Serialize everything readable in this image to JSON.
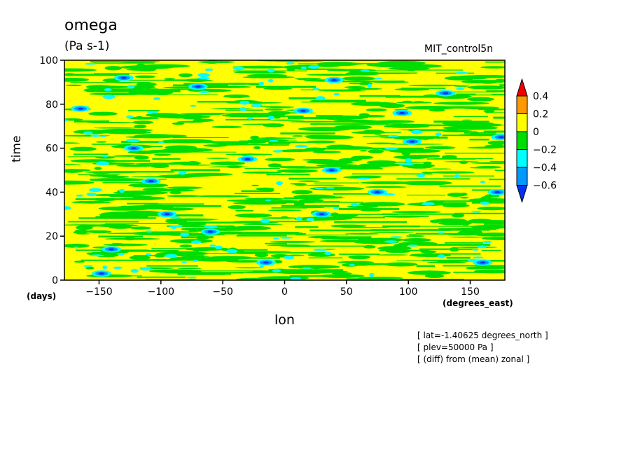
{
  "figure": {
    "title": "omega",
    "units": "(Pa s-1)",
    "run_label": "MIT_control5n",
    "x_label": "lon",
    "x_units": "(degrees_east)",
    "y_label": "time",
    "y_units": "(days)",
    "notes": [
      "[ lat=-1.40625 degrees_north ]",
      "[ plev=50000 Pa ]",
      "[ (diff) from (mean) zonal ]"
    ]
  },
  "chart_data": {
    "type": "heatmap",
    "title": "omega",
    "subtitle": "(Pa s-1)",
    "xlabel": "lon",
    "ylabel": "time",
    "xlim": [
      -178,
      178
    ],
    "ylim": [
      0,
      100
    ],
    "x_ticks": [
      -150,
      -100,
      -50,
      0,
      50,
      100,
      150
    ],
    "y_ticks": [
      0,
      20,
      40,
      60,
      80,
      100
    ],
    "legend_placement": "right",
    "colorbar": {
      "levels": [
        -0.6,
        -0.4,
        -0.2,
        0,
        0.2,
        0.4
      ],
      "labels": [
        "0.4",
        "0.2",
        "0",
        "-0.2",
        "-0.4",
        "-0.6"
      ],
      "bins": [
        {
          "range": "above 0.4",
          "color": "#ee0000"
        },
        {
          "range": "0.2 to 0.4",
          "color": "#ff9900"
        },
        {
          "range": "0 to 0.2",
          "color": "#ffff00"
        },
        {
          "range": "-0.2 to 0",
          "color": "#00dd00"
        },
        {
          "range": "-0.4 to -0.2",
          "color": "#00ffff"
        },
        {
          "range": "-0.6 to -0.4",
          "color": "#0099ff"
        },
        {
          "range": "below -0.6",
          "color": "#0033ee"
        }
      ]
    },
    "features": [
      {
        "lon": -165,
        "time": 78,
        "value": -0.5
      },
      {
        "lon": -148,
        "time": 3,
        "value": -0.5
      },
      {
        "lon": -140,
        "time": 14,
        "value": -0.5
      },
      {
        "lon": -130,
        "time": 92,
        "value": -0.5
      },
      {
        "lon": -122,
        "time": 60,
        "value": -0.5
      },
      {
        "lon": -108,
        "time": 45,
        "value": -0.5
      },
      {
        "lon": -95,
        "time": 30,
        "value": -0.4
      },
      {
        "lon": -70,
        "time": 88,
        "value": -0.4
      },
      {
        "lon": -60,
        "time": 22,
        "value": -0.5
      },
      {
        "lon": -30,
        "time": 55,
        "value": -0.5
      },
      {
        "lon": -15,
        "time": 8,
        "value": -0.4
      },
      {
        "lon": 15,
        "time": 77,
        "value": -0.5
      },
      {
        "lon": 30,
        "time": 30,
        "value": -0.5
      },
      {
        "lon": 38,
        "time": 50,
        "value": -0.5
      },
      {
        "lon": 40,
        "time": 91,
        "value": -0.5
      },
      {
        "lon": 75,
        "time": 40,
        "value": -0.4
      },
      {
        "lon": 95,
        "time": 76,
        "value": -0.5
      },
      {
        "lon": 103,
        "time": 63,
        "value": -0.5
      },
      {
        "lon": 130,
        "time": 85,
        "value": -0.4
      },
      {
        "lon": 160,
        "time": 8,
        "value": -0.5
      },
      {
        "lon": 172,
        "time": 40,
        "value": -0.5
      },
      {
        "lon": 175,
        "time": 65,
        "value": -0.5
      }
    ]
  }
}
